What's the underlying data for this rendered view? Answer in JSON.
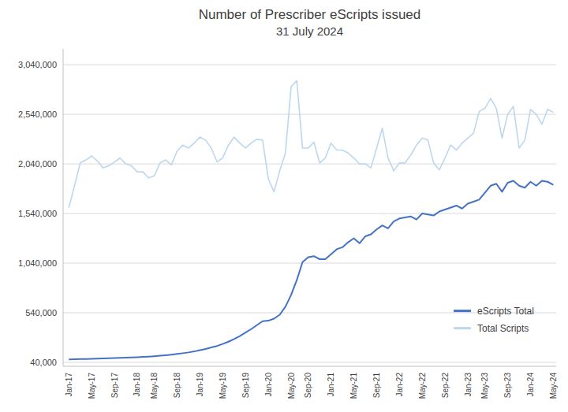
{
  "chart_data": {
    "type": "line",
    "title": "Number of Prescriber eScripts issued",
    "subtitle": "31 July 2024",
    "categories": [
      "Jan-17",
      null,
      null,
      null,
      "May-17",
      null,
      null,
      null,
      "Sep-17",
      null,
      null,
      null,
      "Jan-18",
      null,
      null,
      "May-18",
      null,
      null,
      null,
      "Sep-18",
      null,
      null,
      null,
      "Jan-19",
      null,
      null,
      null,
      "May-19",
      null,
      null,
      null,
      "Sep-19",
      null,
      null,
      null,
      "Jan-20",
      null,
      null,
      null,
      "May-20",
      null,
      null,
      "Sep-20",
      null,
      null,
      null,
      "Jan-21",
      null,
      null,
      null,
      "May-21",
      null,
      null,
      null,
      "Sep-21",
      null,
      null,
      null,
      "Jan-22",
      null,
      null,
      null,
      "May-22",
      null,
      null,
      null,
      "Sep-22",
      null,
      null,
      null,
      "Jan-23",
      null,
      null,
      "May-23",
      null,
      null,
      null,
      "Sep-23",
      null,
      null,
      null,
      "Jan-24",
      null,
      null,
      null,
      "May-24"
    ],
    "series": [
      {
        "name": "eScripts Total",
        "color": "#4472C4",
        "values": [
          70000,
          72000,
          73000,
          74000,
          75000,
          77000,
          79000,
          81000,
          83000,
          85000,
          87000,
          89000,
          92000,
          95000,
          98000,
          102000,
          107000,
          112000,
          118000,
          125000,
          132000,
          140000,
          150000,
          162000,
          175000,
          190000,
          205000,
          225000,
          248000,
          275000,
          305000,
          340000,
          375000,
          415000,
          455000,
          460000,
          480000,
          520000,
          600000,
          720000,
          870000,
          1050000,
          1100000,
          1110000,
          1080000,
          1080000,
          1130000,
          1180000,
          1200000,
          1250000,
          1290000,
          1240000,
          1310000,
          1330000,
          1380000,
          1420000,
          1390000,
          1460000,
          1490000,
          1500000,
          1510000,
          1480000,
          1540000,
          1530000,
          1520000,
          1560000,
          1580000,
          1600000,
          1620000,
          1590000,
          1640000,
          1660000,
          1680000,
          1750000,
          1820000,
          1840000,
          1760000,
          1850000,
          1870000,
          1820000,
          1800000,
          1860000,
          1820000,
          1870000,
          1860000,
          1830000
        ]
      },
      {
        "name": "Total Scripts",
        "color": "#BDD7EE",
        "values": [
          1600000,
          1820000,
          2050000,
          2080000,
          2120000,
          2070000,
          2000000,
          2020000,
          2060000,
          2100000,
          2040000,
          2020000,
          1960000,
          1960000,
          1900000,
          1920000,
          2050000,
          2080000,
          2030000,
          2170000,
          2230000,
          2200000,
          2250000,
          2310000,
          2280000,
          2200000,
          2060000,
          2100000,
          2230000,
          2310000,
          2250000,
          2200000,
          2250000,
          2290000,
          2280000,
          1890000,
          1760000,
          1970000,
          2150000,
          2820000,
          2880000,
          2200000,
          2200000,
          2260000,
          2050000,
          2100000,
          2250000,
          2180000,
          2180000,
          2150000,
          2100000,
          2040000,
          2040000,
          2000000,
          2200000,
          2400000,
          2100000,
          1970000,
          2050000,
          2050000,
          2130000,
          2230000,
          2300000,
          2280000,
          2050000,
          1980000,
          2100000,
          2230000,
          2180000,
          2250000,
          2300000,
          2350000,
          2570000,
          2600000,
          2700000,
          2600000,
          2300000,
          2540000,
          2620000,
          2200000,
          2280000,
          2590000,
          2540000,
          2440000,
          2590000,
          2560000
        ]
      }
    ],
    "ylim": [
      0,
      3200000
    ],
    "yticks": [
      {
        "value": 40000,
        "label": "40,000"
      },
      {
        "value": 540000,
        "label": "540,000"
      },
      {
        "value": 1040000,
        "label": "1,040,000"
      },
      {
        "value": 1540000,
        "label": "1,540,000"
      },
      {
        "value": 2040000,
        "label": "2,040,000"
      },
      {
        "value": 2540000,
        "label": "2,540,000"
      },
      {
        "value": 3040000,
        "label": "3,040,000"
      }
    ],
    "grid": true,
    "legend": "lower right"
  }
}
